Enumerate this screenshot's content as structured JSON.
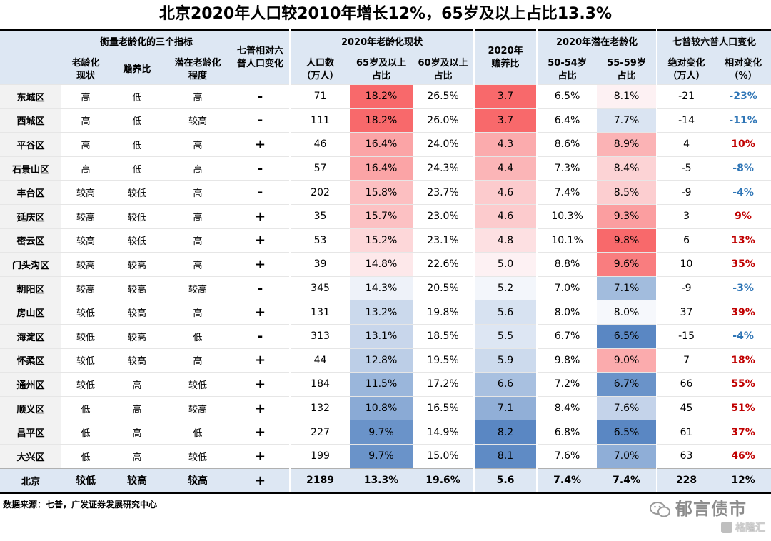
{
  "title": "北京2020年人口较2010年增长12%，65岁及以上占比13.3%",
  "headers": {
    "group1": "衡量老龄化的三个指标",
    "group1_cols": [
      "老龄化\n现状",
      "赡养比",
      "潜在老龄化\n程度"
    ],
    "census_change": "七普相对六\n普人口变化",
    "group2": "2020年老龄化现状",
    "group2_cols": [
      "人口数\n（万人）",
      "65岁及以上\n占比",
      "60岁及以上\n占比"
    ],
    "dependency": "2020年\n赡养比",
    "group3": "2020年潜在老龄化",
    "group3_cols": [
      "50-54岁\n占比",
      "55-59岁\n占比"
    ],
    "group4": "七普较六普人口变化",
    "group4_cols": [
      "绝对变化\n（万人）",
      "相对变化\n（%）"
    ]
  },
  "rows": [
    {
      "region": "东城区",
      "aging": "高",
      "dep_level": "低",
      "potential": "高",
      "change": "-",
      "pop": "71",
      "p65": "18.2%",
      "p60": "26.5%",
      "dep": "3.7",
      "p50": "6.5%",
      "p55": "8.1%",
      "abs": "-21",
      "rel": "-23%"
    },
    {
      "region": "西城区",
      "aging": "高",
      "dep_level": "低",
      "potential": "较高",
      "change": "-",
      "pop": "111",
      "p65": "18.2%",
      "p60": "26.0%",
      "dep": "3.7",
      "p50": "6.4%",
      "p55": "7.7%",
      "abs": "-14",
      "rel": "-11%"
    },
    {
      "region": "平谷区",
      "aging": "高",
      "dep_level": "低",
      "potential": "高",
      "change": "+",
      "pop": "46",
      "p65": "16.4%",
      "p60": "24.0%",
      "dep": "4.3",
      "p50": "8.6%",
      "p55": "8.9%",
      "abs": "4",
      "rel": "10%"
    },
    {
      "region": "石景山区",
      "aging": "高",
      "dep_level": "低",
      "potential": "高",
      "change": "-",
      "pop": "57",
      "p65": "16.4%",
      "p60": "24.3%",
      "dep": "4.4",
      "p50": "7.3%",
      "p55": "8.4%",
      "abs": "-5",
      "rel": "-8%"
    },
    {
      "region": "丰台区",
      "aging": "较高",
      "dep_level": "较低",
      "potential": "高",
      "change": "-",
      "pop": "202",
      "p65": "15.8%",
      "p60": "23.7%",
      "dep": "4.6",
      "p50": "7.4%",
      "p55": "8.5%",
      "abs": "-9",
      "rel": "-4%"
    },
    {
      "region": "延庆区",
      "aging": "较高",
      "dep_level": "较低",
      "potential": "高",
      "change": "+",
      "pop": "35",
      "p65": "15.7%",
      "p60": "23.0%",
      "dep": "4.6",
      "p50": "10.3%",
      "p55": "9.3%",
      "abs": "3",
      "rel": "9%"
    },
    {
      "region": "密云区",
      "aging": "较高",
      "dep_level": "较低",
      "potential": "高",
      "change": "+",
      "pop": "53",
      "p65": "15.2%",
      "p60": "23.1%",
      "dep": "4.8",
      "p50": "10.1%",
      "p55": "9.8%",
      "abs": "6",
      "rel": "13%"
    },
    {
      "region": "门头沟区",
      "aging": "较高",
      "dep_level": "较高",
      "potential": "高",
      "change": "+",
      "pop": "39",
      "p65": "14.8%",
      "p60": "22.6%",
      "dep": "5.0",
      "p50": "8.8%",
      "p55": "9.6%",
      "abs": "10",
      "rel": "35%"
    },
    {
      "region": "朝阳区",
      "aging": "较高",
      "dep_level": "较高",
      "potential": "较高",
      "change": "-",
      "pop": "345",
      "p65": "14.3%",
      "p60": "20.5%",
      "dep": "5.2",
      "p50": "7.0%",
      "p55": "7.1%",
      "abs": "-9",
      "rel": "-3%"
    },
    {
      "region": "房山区",
      "aging": "较低",
      "dep_level": "较高",
      "potential": "高",
      "change": "+",
      "pop": "131",
      "p65": "13.2%",
      "p60": "19.8%",
      "dep": "5.6",
      "p50": "8.0%",
      "p55": "8.0%",
      "abs": "37",
      "rel": "39%"
    },
    {
      "region": "海淀区",
      "aging": "较低",
      "dep_level": "较高",
      "potential": "低",
      "change": "-",
      "pop": "313",
      "p65": "13.1%",
      "p60": "18.5%",
      "dep": "5.5",
      "p50": "6.7%",
      "p55": "6.5%",
      "abs": "-15",
      "rel": "-4%"
    },
    {
      "region": "怀柔区",
      "aging": "较低",
      "dep_level": "较高",
      "potential": "高",
      "change": "+",
      "pop": "44",
      "p65": "12.8%",
      "p60": "19.5%",
      "dep": "5.9",
      "p50": "9.8%",
      "p55": "9.0%",
      "abs": "7",
      "rel": "18%"
    },
    {
      "region": "通州区",
      "aging": "较低",
      "dep_level": "高",
      "potential": "较低",
      "change": "+",
      "pop": "184",
      "p65": "11.5%",
      "p60": "17.2%",
      "dep": "6.6",
      "p50": "7.2%",
      "p55": "6.7%",
      "abs": "66",
      "rel": "55%"
    },
    {
      "region": "顺义区",
      "aging": "低",
      "dep_level": "高",
      "potential": "较高",
      "change": "+",
      "pop": "132",
      "p65": "10.8%",
      "p60": "16.5%",
      "dep": "7.1",
      "p50": "8.4%",
      "p55": "7.6%",
      "abs": "45",
      "rel": "51%"
    },
    {
      "region": "昌平区",
      "aging": "低",
      "dep_level": "高",
      "potential": "低",
      "change": "+",
      "pop": "227",
      "p65": "9.7%",
      "p60": "14.9%",
      "dep": "8.2",
      "p50": "6.8%",
      "p55": "6.5%",
      "abs": "61",
      "rel": "37%"
    },
    {
      "region": "大兴区",
      "aging": "低",
      "dep_level": "高",
      "potential": "较低",
      "change": "+",
      "pop": "199",
      "p65": "9.7%",
      "p60": "15.0%",
      "dep": "8.1",
      "p50": "7.6%",
      "p55": "7.0%",
      "abs": "63",
      "rel": "46%"
    }
  ],
  "total": {
    "region": "北京",
    "aging": "较低",
    "dep_level": "较高",
    "potential": "较高",
    "change": "+",
    "pop": "2189",
    "p65": "13.3%",
    "p60": "19.6%",
    "dep": "5.6",
    "p50": "7.4%",
    "p55": "7.4%",
    "abs": "228",
    "rel": "12%"
  },
  "heat_colors": {
    "p65": [
      "#f8696b",
      "#f8696b",
      "#fba4a6",
      "#fba4a6",
      "#fcbfc1",
      "#fcc1c3",
      "#fdd7d9",
      "#fde8ea",
      "#eef2f9",
      "#cbd9ec",
      "#c8d6eb",
      "#bcceE7",
      "#9ab6db",
      "#8aaad5",
      "#6a93c9",
      "#6a93c9"
    ],
    "dep": [
      "#f8696b",
      "#f8696b",
      "#fbabad",
      "#fbb5b7",
      "#fccbcd",
      "#fccbcd",
      "#fde0e2",
      "#fdf1f3",
      "#f3f6fb",
      "#d7e2f1",
      "#dde6f3",
      "#ccdaed",
      "#a8c0e0",
      "#91afd7",
      "#5a87c3",
      "#5f8bc5"
    ],
    "p55": [
      "#fdf1f3",
      "#dae4f2",
      "#fbb3b5",
      "#fcd3d5",
      "#fcceD0",
      "#fb9ea0",
      "#f8696b",
      "#f97d7f",
      "#a2bcdd",
      "#f6f8fc",
      "#5a87c3",
      "#fbabad",
      "#6a93c9",
      "#c4d3ea",
      "#5a87c3",
      "#8faed7"
    ]
  },
  "source": "数据来源：七普，广发证券发展研究中心",
  "watermark": "郁言债市",
  "watermark2": "格隆汇"
}
